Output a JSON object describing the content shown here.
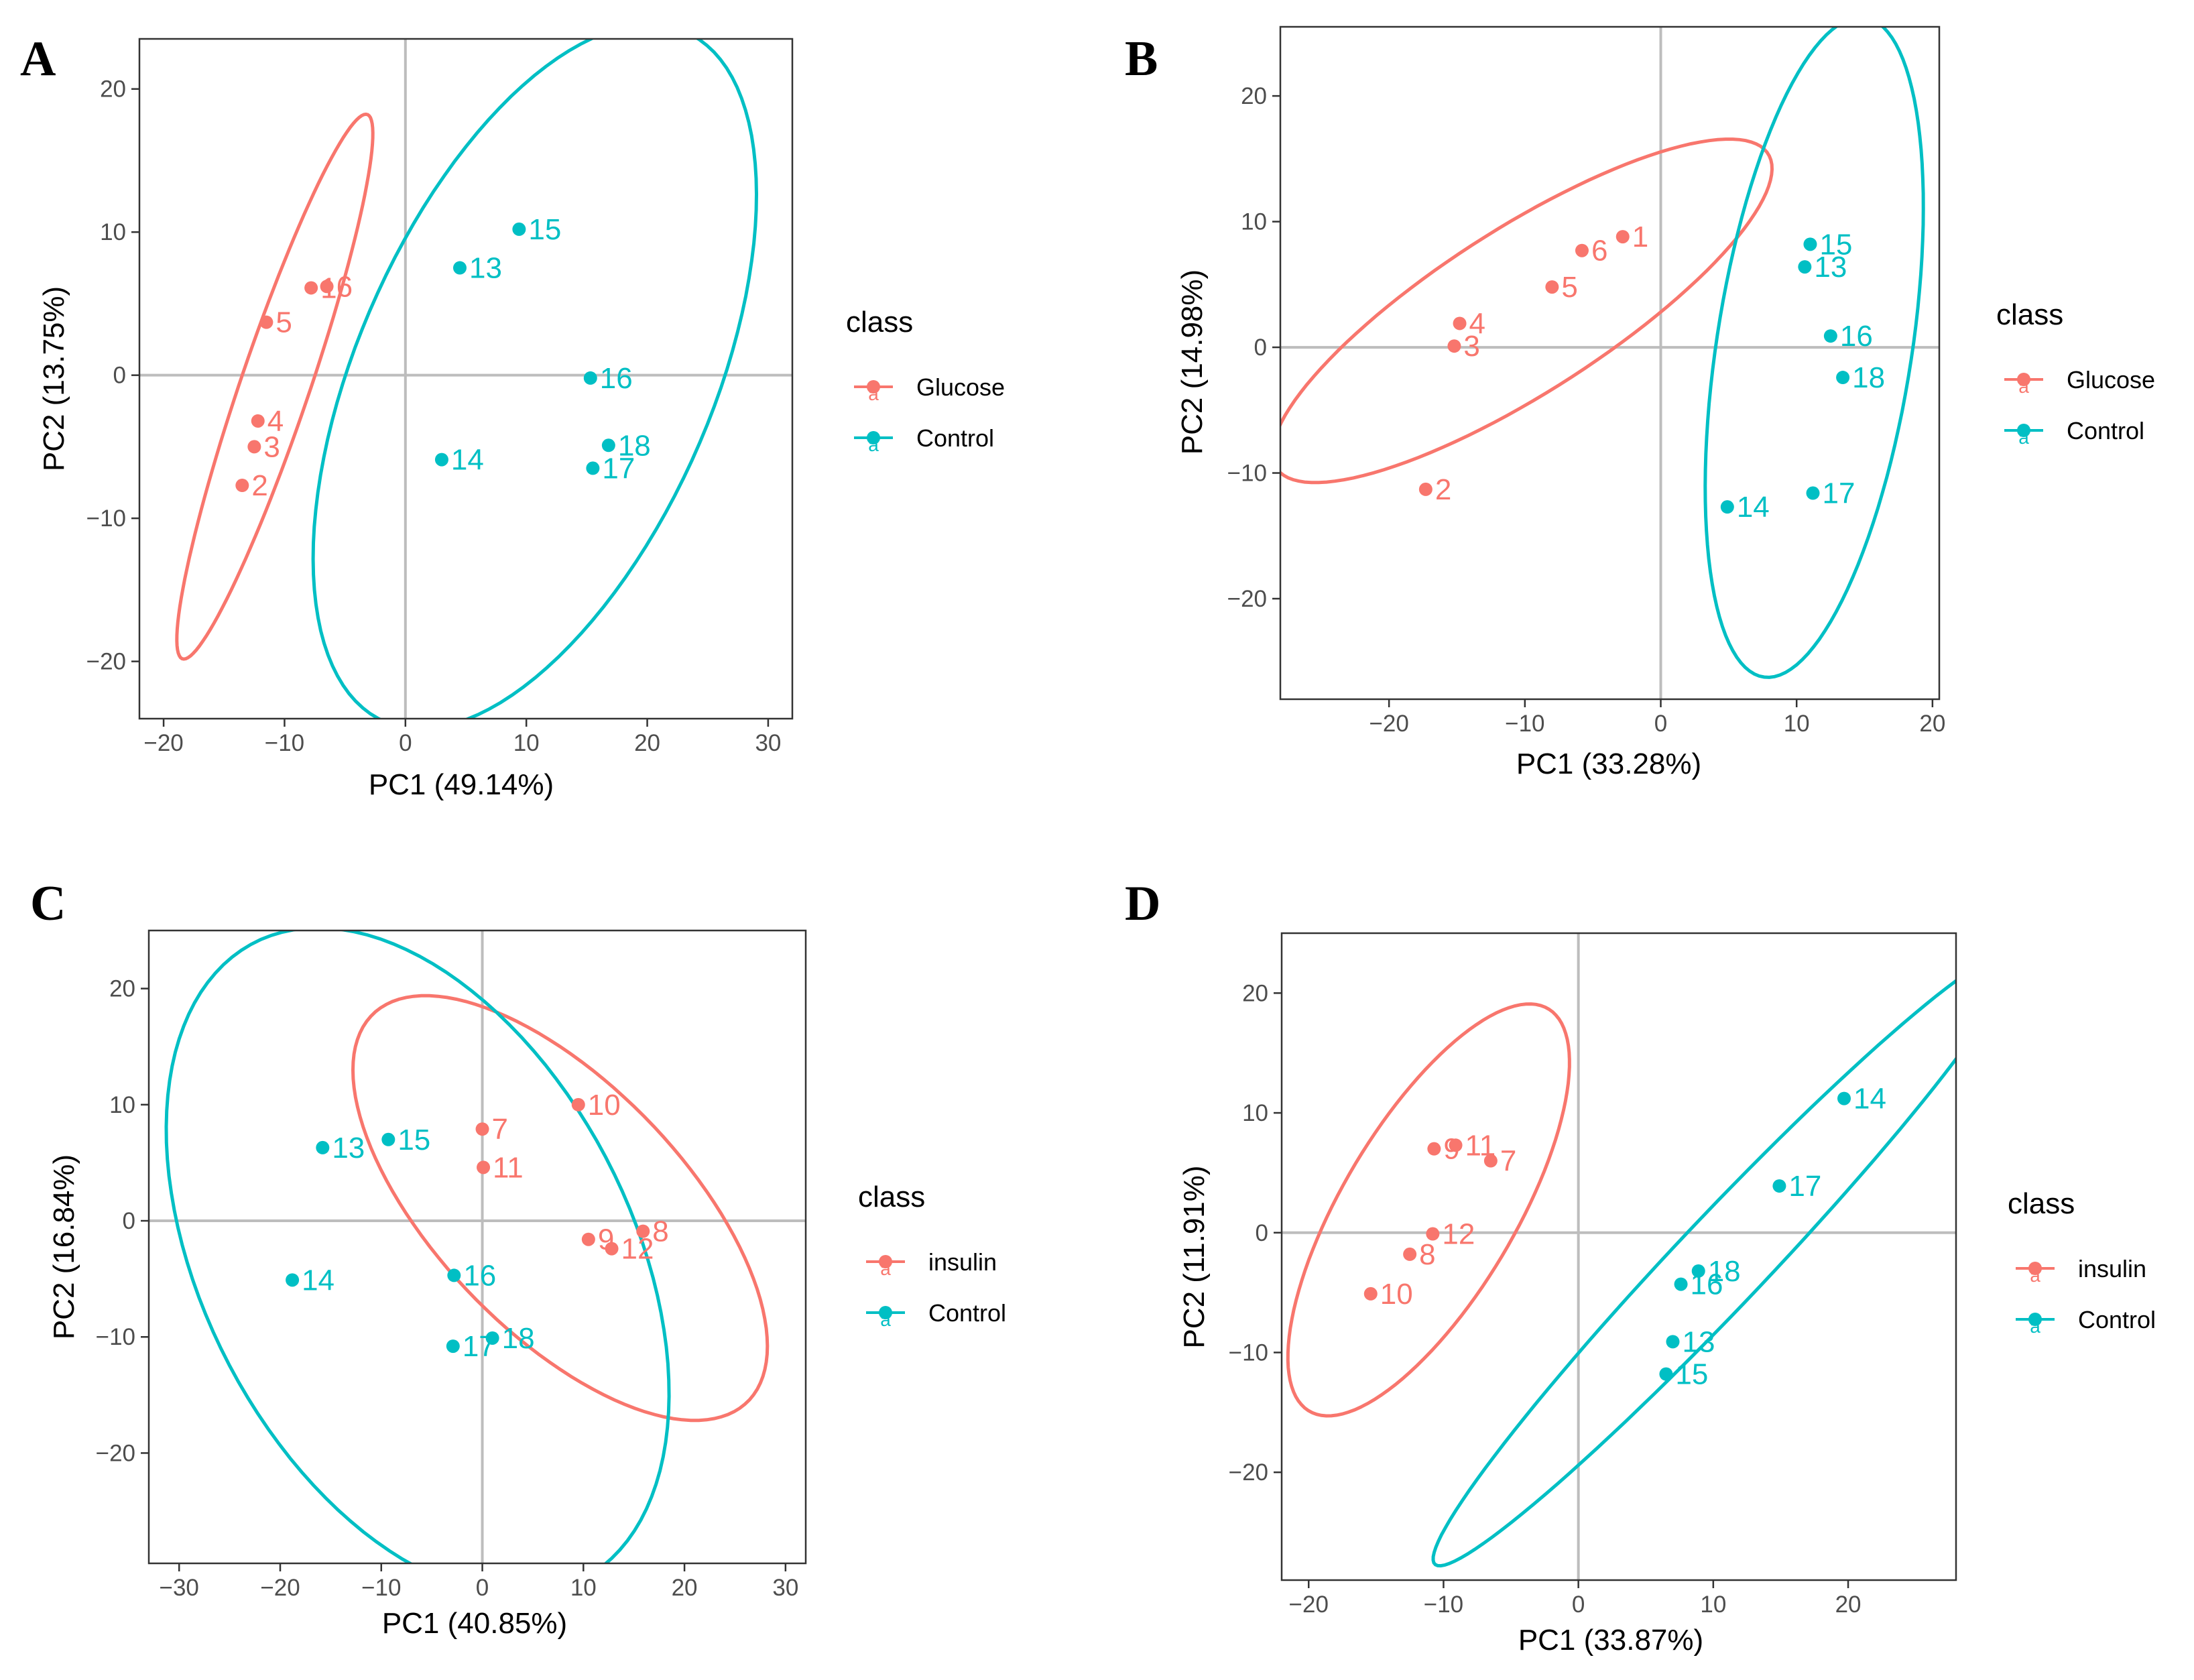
{
  "colors": {
    "red": "#F8766D",
    "cyan": "#00BFC4"
  },
  "chart_data": [
    {
      "panel": "A",
      "type": "scatter",
      "xlabel": "PC1 (49.14%)",
      "ylabel": "PC2 (13.75%)",
      "xlim": [
        -22,
        32
      ],
      "ylim": [
        -24,
        23.5
      ],
      "xticks": [
        -20,
        -10,
        0,
        10,
        20,
        30
      ],
      "yticks": [
        -20,
        -10,
        0,
        10,
        20
      ],
      "legend": {
        "title": "class",
        "entries": [
          "Glucose",
          "Control"
        ]
      },
      "series": [
        {
          "name": "Glucose",
          "points": [
            {
              "label": "2",
              "x": -13.5,
              "y": -7.7
            },
            {
              "label": "3",
              "x": -12.5,
              "y": -5.0
            },
            {
              "label": "4",
              "x": -12.2,
              "y": -3.2
            },
            {
              "label": "5",
              "x": -11.5,
              "y": 3.7
            },
            {
              "label": "1",
              "x": -7.8,
              "y": 6.1
            },
            {
              "label": "6",
              "x": -6.5,
              "y": 6.2
            }
          ],
          "ellipse": {
            "cx": -10.8,
            "cy": -0.8,
            "rx": 20.5,
            "ry": 2.8,
            "angle": 68
          }
        },
        {
          "name": "Control",
          "points": [
            {
              "label": "13",
              "x": 4.5,
              "y": 7.5
            },
            {
              "label": "14",
              "x": 3.0,
              "y": -5.9
            },
            {
              "label": "15",
              "x": 9.4,
              "y": 10.2
            },
            {
              "label": "16",
              "x": 15.3,
              "y": -0.2
            },
            {
              "label": "17",
              "x": 15.5,
              "y": -6.5
            },
            {
              "label": "18",
              "x": 16.8,
              "y": -4.9
            }
          ],
          "ellipse": {
            "cx": 10.7,
            "cy": -0.1,
            "rx": 27.2,
            "ry": 14.2,
            "angle": 60
          }
        }
      ]
    },
    {
      "panel": "B",
      "type": "scatter",
      "xlabel": "PC1 (33.28%)",
      "ylabel": "PC2 (14.98%)",
      "xlim": [
        -28,
        20.5
      ],
      "ylim": [
        -28,
        25.5
      ],
      "xticks": [
        -20,
        -10,
        0,
        10,
        20
      ],
      "yticks": [
        -20,
        -10,
        0,
        10,
        20
      ],
      "legend": {
        "title": "class",
        "entries": [
          "Glucose",
          "Control"
        ]
      },
      "series": [
        {
          "name": "Glucose",
          "points": [
            {
              "label": "1",
              "x": -2.8,
              "y": 8.8
            },
            {
              "label": "6",
              "x": -5.8,
              "y": 7.7
            },
            {
              "label": "5",
              "x": -8.0,
              "y": 4.8
            },
            {
              "label": "4",
              "x": -14.8,
              "y": 1.9
            },
            {
              "label": "3",
              "x": -15.2,
              "y": 0.1
            },
            {
              "label": "2",
              "x": -17.3,
              "y": -11.3
            }
          ],
          "ellipse": {
            "cx": -10.2,
            "cy": 2.9,
            "rx": 22.0,
            "ry": 6.4,
            "angle": 35
          }
        },
        {
          "name": "Control",
          "points": [
            {
              "label": "15",
              "x": 11.0,
              "y": 8.2
            },
            {
              "label": "13",
              "x": 10.6,
              "y": 6.4
            },
            {
              "label": "16",
              "x": 12.5,
              "y": 0.9
            },
            {
              "label": "18",
              "x": 13.4,
              "y": -2.4
            },
            {
              "label": "17",
              "x": 11.2,
              "y": -11.6
            },
            {
              "label": "14",
              "x": 4.9,
              "y": -12.7
            }
          ],
          "ellipse": {
            "cx": 11.3,
            "cy": 0.0,
            "rx": 26.5,
            "ry": 7.2,
            "angle": 82
          }
        }
      ]
    },
    {
      "panel": "C",
      "type": "scatter",
      "xlabel": "PC1 (40.85%)",
      "ylabel": "PC2 (16.84%)",
      "xlim": [
        -33,
        32
      ],
      "ylim": [
        -29.5,
        25
      ],
      "xticks": [
        -30,
        -20,
        -10,
        0,
        10,
        20,
        30
      ],
      "yticks": [
        -20,
        -10,
        0,
        10,
        20
      ],
      "legend": {
        "title": "class",
        "entries": [
          "insulin",
          "Control"
        ]
      },
      "series": [
        {
          "name": "insulin",
          "points": [
            {
              "label": "10",
              "x": 9.5,
              "y": 10.0
            },
            {
              "label": "7",
              "x": 0.0,
              "y": 7.9
            },
            {
              "label": "11",
              "x": 0.1,
              "y": 4.6
            },
            {
              "label": "8",
              "x": 15.9,
              "y": -0.9
            },
            {
              "label": "9",
              "x": 10.5,
              "y": -1.6
            },
            {
              "label": "12",
              "x": 12.8,
              "y": -2.4
            }
          ],
          "ellipse": {
            "cx": 7.7,
            "cy": 1.1,
            "rx": 25.0,
            "ry": 11.4,
            "angle": -40
          }
        },
        {
          "name": "Control",
          "points": [
            {
              "label": "13",
              "x": -15.8,
              "y": 6.3
            },
            {
              "label": "15",
              "x": -9.3,
              "y": 7.0
            },
            {
              "label": "14",
              "x": -18.8,
              "y": -5.1
            },
            {
              "label": "16",
              "x": -2.8,
              "y": -4.7
            },
            {
              "label": "17",
              "x": -2.9,
              "y": -10.8
            },
            {
              "label": "18",
              "x": 1.0,
              "y": -10.1
            }
          ],
          "ellipse": {
            "cx": -6.4,
            "cy": -3.5,
            "rx": 32.0,
            "ry": 20.5,
            "angle": -55
          }
        }
      ]
    },
    {
      "panel": "D",
      "type": "scatter",
      "xlabel": "PC1 (33.87%)",
      "ylabel": "PC2 (11.91%)",
      "xlim": [
        -22,
        28
      ],
      "ylim": [
        -29,
        25
      ],
      "xticks": [
        -20,
        -10,
        0,
        10,
        20
      ],
      "yticks": [
        -20,
        -10,
        0,
        10,
        20
      ],
      "legend": {
        "title": "class",
        "entries": [
          "insulin",
          "Control"
        ]
      },
      "series": [
        {
          "name": "insulin",
          "points": [
            {
              "label": "11",
              "x": -9.1,
              "y": 7.3
            },
            {
              "label": "9",
              "x": -10.7,
              "y": 7.0
            },
            {
              "label": "7",
              "x": -6.5,
              "y": 6.0
            },
            {
              "label": "12",
              "x": -10.8,
              "y": -0.1
            },
            {
              "label": "8",
              "x": -12.5,
              "y": -1.8
            },
            {
              "label": "10",
              "x": -15.4,
              "y": -5.1
            }
          ],
          "ellipse": {
            "cx": -11.1,
            "cy": 1.9,
            "rx": 19.0,
            "ry": 6.6,
            "angle": 63
          }
        },
        {
          "name": "Control",
          "points": [
            {
              "label": "14",
              "x": 19.7,
              "y": 11.2
            },
            {
              "label": "17",
              "x": 14.9,
              "y": 3.9
            },
            {
              "label": "18",
              "x": 8.9,
              "y": -3.2
            },
            {
              "label": "16",
              "x": 7.6,
              "y": -4.3
            },
            {
              "label": "13",
              "x": 7.0,
              "y": -9.1
            },
            {
              "label": "15",
              "x": 6.5,
              "y": -11.8
            }
          ],
          "ellipse": {
            "cx": 10.8,
            "cy": -2.2,
            "rx": 33.3,
            "ry": 3.5,
            "angle": 50
          }
        }
      ]
    }
  ]
}
